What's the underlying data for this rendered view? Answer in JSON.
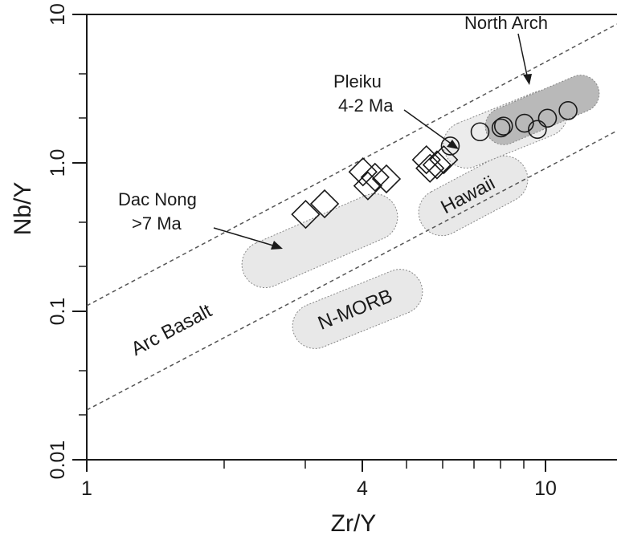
{
  "chart_data": {
    "type": "scatter",
    "title": "",
    "xlabel": "Zr/Y",
    "ylabel": "Nb/Y",
    "x_scale": "log",
    "y_scale": "log",
    "xlim": [
      1,
      15
    ],
    "ylim": [
      0.01,
      10
    ],
    "x_ticks": [
      "1",
      "4",
      "10"
    ],
    "y_ticks": [
      "0.01",
      "0.1",
      "1.0",
      "10"
    ],
    "grid": false,
    "colors": {
      "axis": "#1a1a1a",
      "field_fill": "#e8e8e8",
      "north_arch_fill": "#b9b9b9",
      "boundary_line": "#555555"
    },
    "series": [
      {
        "name": "Dac Nong >7 Ma",
        "marker": "diamond",
        "points": [
          {
            "x": 3.0,
            "y": 0.45
          },
          {
            "x": 3.3,
            "y": 0.53
          },
          {
            "x": 4.0,
            "y": 0.87
          },
          {
            "x": 4.1,
            "y": 0.7
          },
          {
            "x": 4.25,
            "y": 0.8
          },
          {
            "x": 4.5,
            "y": 0.78
          },
          {
            "x": 5.5,
            "y": 1.05
          },
          {
            "x": 5.6,
            "y": 0.92
          },
          {
            "x": 5.8,
            "y": 0.97
          },
          {
            "x": 6.0,
            "y": 1.05
          }
        ]
      },
      {
        "name": "Pleiku 4-2 Ma",
        "marker": "circle",
        "points": [
          {
            "x": 6.2,
            "y": 1.3
          },
          {
            "x": 7.2,
            "y": 1.62
          },
          {
            "x": 8.0,
            "y": 1.72
          },
          {
            "x": 8.1,
            "y": 1.77
          },
          {
            "x": 9.0,
            "y": 1.85
          },
          {
            "x": 9.6,
            "y": 1.68
          },
          {
            "x": 10.1,
            "y": 2.0
          },
          {
            "x": 11.2,
            "y": 2.25
          }
        ]
      }
    ],
    "fields": [
      {
        "label": "Dac Nong >7 Ma",
        "type": "arrow-annotation"
      },
      {
        "label": "Pleiku 4-2 Ma",
        "type": "arrow-annotation"
      },
      {
        "label": "North Arch",
        "type": "arrow-annotation"
      },
      {
        "label": "Hawaii",
        "type": "field"
      },
      {
        "label": "N-MORB",
        "type": "field"
      },
      {
        "label": "Arc Basalt",
        "type": "field"
      }
    ],
    "annotations": {
      "dac_nong_line1": "Dac Nong",
      "dac_nong_line2": ">7 Ma",
      "pleiku_line1": "Pleiku",
      "pleiku_line2": "4-2 Ma",
      "north_arch": "North Arch",
      "hawaii": "Hawaii",
      "n_morb": "N-MORB",
      "arc_basalt": "Arc Basalt"
    }
  }
}
